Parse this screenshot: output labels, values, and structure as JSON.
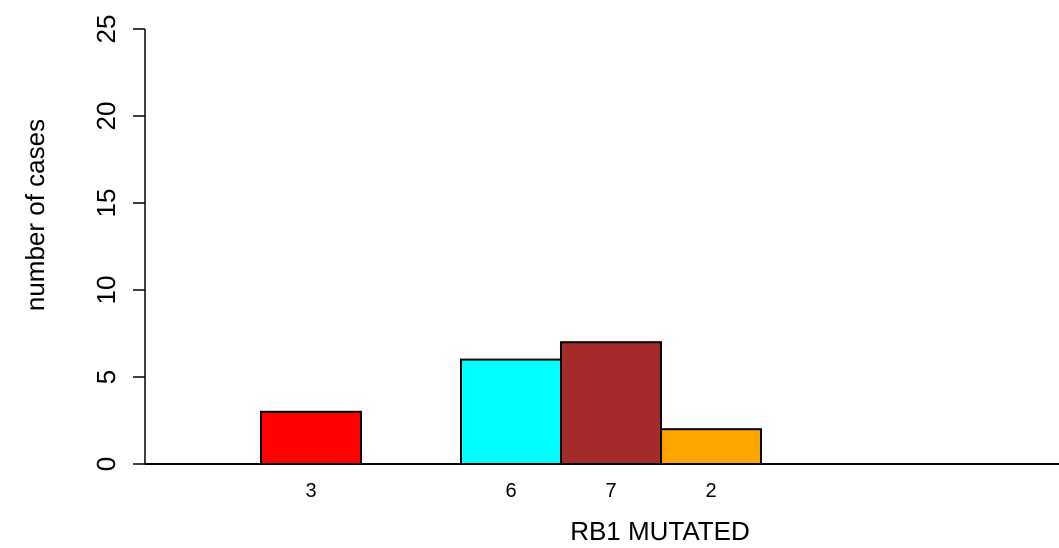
{
  "chart_data": {
    "type": "bar",
    "ylabel": "number of cases",
    "xlabel": "RB1 MUTATED",
    "ylim": [
      0,
      25
    ],
    "yticks": [
      0,
      5,
      10,
      15,
      20,
      25
    ],
    "grid": false,
    "bars": [
      {
        "value": 3,
        "label": "3",
        "color": "#ff0000"
      },
      {
        "value": null,
        "label": "",
        "color": null
      },
      {
        "value": 6,
        "label": "6",
        "color": "#00ffff"
      },
      {
        "value": 7,
        "label": "7",
        "color": "#a52a2a"
      },
      {
        "value": 2,
        "label": "2",
        "color": "#ffa500"
      },
      {
        "value": 0,
        "label": "",
        "color": null
      },
      {
        "value": 0,
        "label": "",
        "color": null
      },
      {
        "value": 0,
        "label": "",
        "color": null
      }
    ]
  }
}
